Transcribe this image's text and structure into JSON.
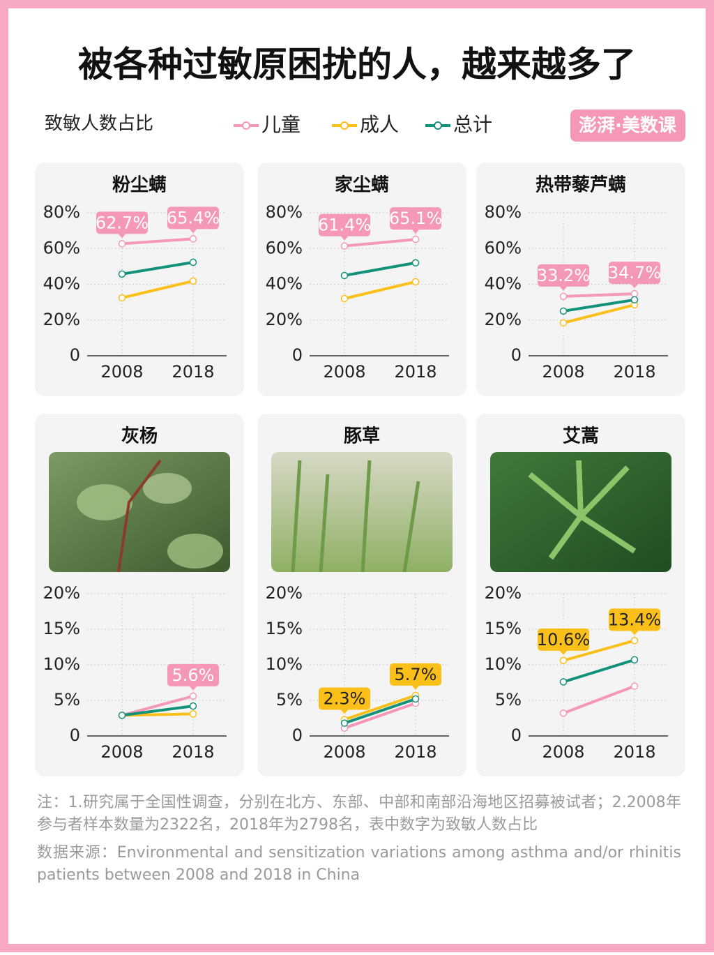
{
  "title": "被各种过敏原困扰的人，越来越多了",
  "y_label": "致敏人数占比",
  "brand": "澎湃·美数课",
  "legend": [
    {
      "name": "儿童",
      "color": "#f598b8",
      "label_text_color": "#ffffff"
    },
    {
      "name": "成人",
      "color": "#fbbf1a",
      "label_text_color": "#222222"
    },
    {
      "name": "总计",
      "color": "#14917a",
      "label_text_color": "#ffffff"
    }
  ],
  "chart_data": [
    {
      "type": "line",
      "title": "粉尘螨",
      "categories": [
        "2008",
        "2018"
      ],
      "ylim": [
        0,
        80
      ],
      "yticks": [
        0,
        {
          "value": 20,
          "label": "20%"
        },
        {
          "value": 40,
          "label": "40%"
        },
        {
          "value": 60,
          "label": "60%"
        },
        {
          "value": 80,
          "label": "80%"
        }
      ],
      "grid": true,
      "series": [
        {
          "values": [
            62.7,
            65.4
          ],
          "value_labels": [
            "62.7%",
            "65.4%"
          ]
        },
        {
          "values": [
            32.4,
            41.8
          ]
        },
        {
          "values": [
            45.7,
            52.3
          ]
        }
      ]
    },
    {
      "type": "line",
      "title": "家尘螨",
      "categories": [
        "2008",
        "2018"
      ],
      "ylim": [
        0,
        80
      ],
      "yticks": [
        0,
        {
          "value": 20,
          "label": "20%"
        },
        {
          "value": 40,
          "label": "40%"
        },
        {
          "value": 60,
          "label": "60%"
        },
        {
          "value": 80,
          "label": "80%"
        }
      ],
      "grid": true,
      "series": [
        {
          "values": [
            61.4,
            65.1
          ],
          "value_labels": [
            "61.4%",
            "65.1%"
          ]
        },
        {
          "values": [
            32.0,
            41.4
          ]
        },
        {
          "values": [
            44.9,
            52.0
          ]
        }
      ]
    },
    {
      "type": "line",
      "title": "热带藜芦螨",
      "categories": [
        "2008",
        "2018"
      ],
      "ylim": [
        0,
        80
      ],
      "yticks": [
        0,
        {
          "value": 20,
          "label": "20%"
        },
        {
          "value": 40,
          "label": "40%"
        },
        {
          "value": 60,
          "label": "60%"
        },
        {
          "value": 80,
          "label": "80%"
        }
      ],
      "grid": true,
      "series": [
        {
          "values": [
            33.2,
            34.7
          ],
          "value_labels": [
            "33.2%",
            "34.7%"
          ]
        },
        {
          "values": [
            18.4,
            28.5
          ]
        },
        {
          "values": [
            25.0,
            31.3
          ]
        }
      ]
    },
    {
      "type": "line",
      "title": "灰杨",
      "categories": [
        "2008",
        "2018"
      ],
      "ylim": [
        0,
        20
      ],
      "yticks": [
        0,
        {
          "value": 5,
          "label": "5%"
        },
        {
          "value": 10,
          "label": "10%"
        },
        {
          "value": 15,
          "label": "15%"
        },
        {
          "value": 20,
          "label": "20%"
        }
      ],
      "grid": true,
      "series": [
        {
          "values": [
            2.9,
            5.6
          ],
          "value_labels": [
            null,
            "5.6%"
          ]
        },
        {
          "values": [
            2.9,
            3.1
          ]
        },
        {
          "values": [
            2.9,
            4.2
          ]
        }
      ]
    },
    {
      "type": "line",
      "title": "豚草",
      "categories": [
        "2008",
        "2018"
      ],
      "ylim": [
        0,
        20
      ],
      "yticks": [
        0,
        {
          "value": 5,
          "label": "5%"
        },
        {
          "value": 10,
          "label": "10%"
        },
        {
          "value": 15,
          "label": "15%"
        },
        {
          "value": 20,
          "label": "20%"
        }
      ],
      "grid": true,
      "series": [
        {
          "values": [
            1.1,
            4.6
          ]
        },
        {
          "values": [
            2.3,
            5.7
          ],
          "value_labels": [
            "2.3%",
            "5.7%"
          ]
        },
        {
          "values": [
            1.8,
            5.2
          ]
        }
      ]
    },
    {
      "type": "line",
      "title": "艾蒿",
      "categories": [
        "2008",
        "2018"
      ],
      "ylim": [
        0,
        20
      ],
      "yticks": [
        0,
        {
          "value": 5,
          "label": "5%"
        },
        {
          "value": 10,
          "label": "10%"
        },
        {
          "value": 15,
          "label": "15%"
        },
        {
          "value": 20,
          "label": "20%"
        }
      ],
      "grid": true,
      "series": [
        {
          "values": [
            3.2,
            7.0
          ]
        },
        {
          "values": [
            10.6,
            13.4
          ],
          "value_labels": [
            "10.6%",
            "13.4%"
          ]
        },
        {
          "values": [
            7.6,
            10.7
          ]
        }
      ]
    }
  ],
  "notes": [
    "注：1.研究属于全国性调查，分别在北方、东部、中部和南部沿海地区招募被试者；2.2008年参与者样本数量为2322名，2018年为2798名，表中数字为致敏人数占比",
    "数据来源：Environmental and sensitization variations among asthma and/or rhinitis patients between 2008 and 2018 in China"
  ]
}
